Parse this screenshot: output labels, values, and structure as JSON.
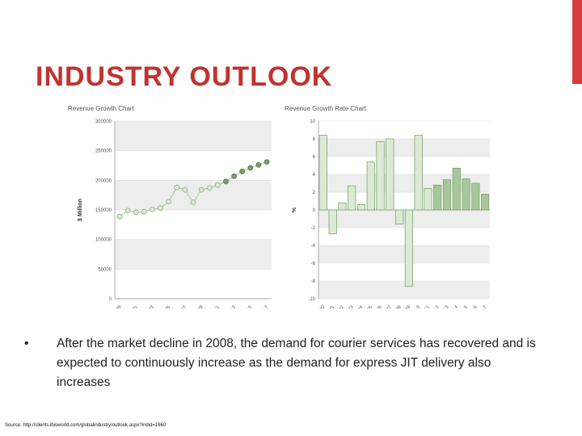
{
  "slide": {
    "title": "INDUSTRY OUTLOOK",
    "bullet_mark": "•",
    "bullet": "After the market decline in 2008, the demand for courier services has recovered and is expected to continuously increase as the demand for express JIT delivery also increases",
    "source": "Source: http://clients.ibisworld.com/globalindustry/outlook.aspx?indid=1660",
    "accent_color": "#d63c3c"
  },
  "chart_data": [
    {
      "type": "line",
      "title": "Revenue Growth Chart",
      "xlabel": "",
      "ylabel": "$ Million",
      "ylim": [
        0,
        300000
      ],
      "yticks": [
        "0",
        "50000",
        "100000",
        "150000",
        "200000",
        "250000",
        "300000"
      ],
      "x": [
        1999,
        2000,
        2001,
        2002,
        2003,
        2004,
        2005,
        2006,
        2007,
        2008,
        2009,
        2010,
        2011,
        2012,
        2013,
        2014,
        2015,
        2016,
        2017
      ],
      "xtick_labels": [
        "1999",
        "2001",
        "2003",
        "2005",
        "2007",
        "2009",
        "2011",
        "2013",
        "2015",
        "2017"
      ],
      "values": [
        139000,
        149000,
        146000,
        147000,
        151000,
        153000,
        164000,
        188000,
        184000,
        163000,
        184000,
        187000,
        192000,
        198000,
        207000,
        215000,
        221000,
        226000,
        231000
      ],
      "marker": "circle",
      "grid": true
    },
    {
      "type": "bar",
      "title": "Revenue Growth Rate Chart",
      "ylabel": "%",
      "ylim": [
        -10,
        10
      ],
      "yticks": [
        "10",
        "8",
        "6",
        "4",
        "2",
        "0",
        "-2",
        "-4",
        "-6",
        "-8",
        "-10"
      ],
      "categories": [
        "2000",
        "2001",
        "2002",
        "2003",
        "2004",
        "2005",
        "2006",
        "2007",
        "2008",
        "2009",
        "2010",
        "2011",
        "2012",
        "2013",
        "2014",
        "2015",
        "2016",
        "2017"
      ],
      "values": [
        8.4,
        -2.7,
        0.8,
        2.7,
        0.6,
        5.4,
        7.7,
        8.0,
        -1.6,
        -8.6,
        8.4,
        2.4,
        2.8,
        3.4,
        4.7,
        3.5,
        3.0,
        1.8
      ],
      "grid": true
    }
  ]
}
